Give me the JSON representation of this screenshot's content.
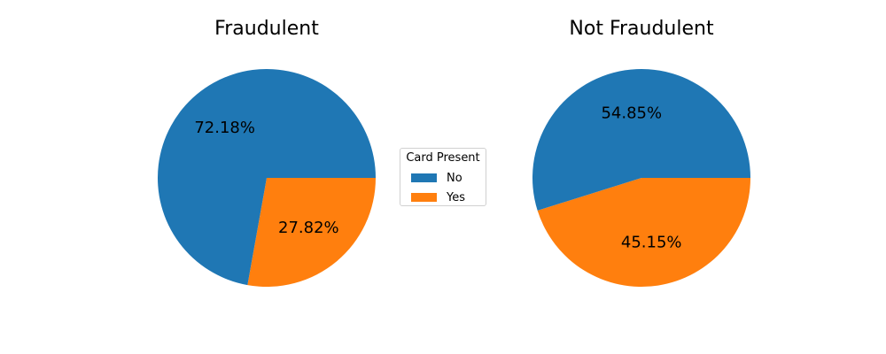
{
  "chart_data": [
    {
      "type": "pie",
      "title": "Fraudulent",
      "slices": [
        {
          "label": "No",
          "value": 72.18,
          "display": "72.18%",
          "color": "#1f77b4"
        },
        {
          "label": "Yes",
          "value": 27.82,
          "display": "27.82%",
          "color": "#ff7f0e"
        }
      ]
    },
    {
      "type": "pie",
      "title": "Not Fraudulent",
      "slices": [
        {
          "label": "No",
          "value": 54.85,
          "display": "54.85%",
          "color": "#1f77b4"
        },
        {
          "label": "Yes",
          "value": 45.15,
          "display": "45.15%",
          "color": "#ff7f0e"
        }
      ]
    }
  ],
  "legend": {
    "title": "Card Present",
    "entries": [
      {
        "label": "No",
        "color": "#1f77b4"
      },
      {
        "label": "Yes",
        "color": "#ff7f0e"
      }
    ]
  }
}
